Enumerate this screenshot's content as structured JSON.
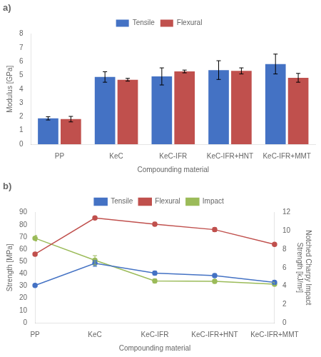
{
  "chart_data": [
    {
      "type": "bar",
      "title": "a)",
      "categories": [
        "PP",
        "KeC",
        "KeC-IFR",
        "KeC-IFR+HNT",
        "KeC-IFR+MMT"
      ],
      "x_label": "Compounding material",
      "y_label": "Modulus [GPa]",
      "series": [
        {
          "name": "Tensile",
          "color": "#4472C4",
          "values": [
            1.88,
            4.88,
            4.92,
            5.38,
            5.82
          ],
          "errors": [
            0.12,
            0.38,
            0.62,
            0.68,
            0.72
          ]
        },
        {
          "name": "Flexural",
          "color": "#C0504D",
          "values": [
            1.82,
            4.68,
            5.28,
            5.32,
            4.82
          ],
          "errors": [
            0.2,
            0.1,
            0.1,
            0.22,
            0.32
          ]
        }
      ],
      "ylim": [
        0,
        8
      ],
      "yticks": [
        0,
        1,
        2,
        3,
        4,
        5,
        6,
        7,
        8
      ],
      "grid": false,
      "legend": "top"
    },
    {
      "type": "line",
      "title": "b)",
      "categories": [
        "PP",
        "KeC",
        "KeC-IFR",
        "KeC-IFR+HNT",
        "KeC-IFR+MMT"
      ],
      "x_label": "Compounding material",
      "y_label": "Strength [MPa]",
      "y2_label": "Notched Charpy Impact\nStrength [kJ/m²]",
      "series": [
        {
          "name": "Tensile",
          "color": "#4472C4",
          "marker": "circle",
          "values": [
            30.5,
            48.5,
            40.5,
            38.5,
            33.0
          ],
          "errors": [
            1.0,
            2.5,
            1.5,
            1.5,
            1.5
          ]
        },
        {
          "name": "Flexural",
          "color": "#C0504D",
          "marker": "circle",
          "values": [
            56.0,
            85.5,
            80.5,
            76.0,
            64.0
          ],
          "errors": [
            1.5,
            1.0,
            1.5,
            1.5,
            1.0
          ]
        },
        {
          "name": "Impact",
          "color": "#9BBB59",
          "marker": "circle",
          "axis": "y2",
          "values": [
            9.2,
            6.8,
            4.55,
            4.5,
            4.2
          ],
          "errors": [
            0.3,
            0.5,
            0.2,
            0.2,
            0.2
          ]
        }
      ],
      "ylim": [
        0,
        90
      ],
      "yticks": [
        0,
        10,
        20,
        30,
        40,
        50,
        60,
        70,
        80,
        90
      ],
      "y2lim": [
        0,
        12
      ],
      "y2ticks": [
        0,
        2,
        4,
        6,
        8,
        10,
        12
      ],
      "grid": false,
      "legend": "top"
    }
  ]
}
